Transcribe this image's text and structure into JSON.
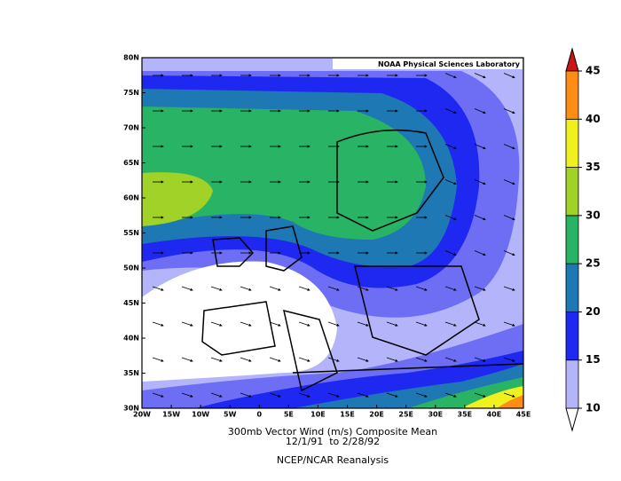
{
  "map": {
    "title": "300mb Vector Wind (m/s) Composite Mean",
    "period": "12/1/91  to 2/28/92",
    "source": "NCEP/NCAR Reanalysis",
    "credit": "NOAA Physical Sciences Laboratory",
    "lat_labels": [
      "80N",
      "75N",
      "70N",
      "65N",
      "60N",
      "55N",
      "50N",
      "45N",
      "40N",
      "35N",
      "30N"
    ],
    "lon_labels": [
      "20W",
      "15W",
      "10W",
      "5W",
      "0",
      "5E",
      "10E",
      "15E",
      "20E",
      "25E",
      "30E",
      "35E",
      "40E",
      "45E"
    ]
  },
  "colorbar": {
    "ticks": [
      10,
      15,
      20,
      25,
      30,
      35,
      40,
      45
    ],
    "under_color": "#ffffff",
    "colors": [
      "#b4b4fa",
      "#1e28f0",
      "#1e78b4",
      "#28b464",
      "#a0d228",
      "#f0f01e",
      "#ff8c14"
    ],
    "over_color": "#c81414"
  }
}
